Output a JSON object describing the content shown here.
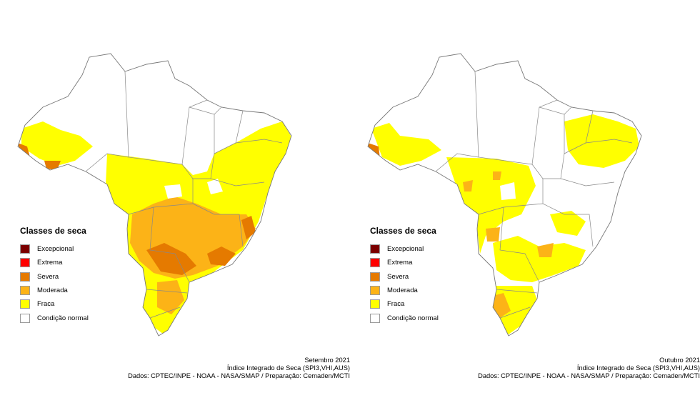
{
  "legend": {
    "title": "Classes de seca",
    "items": [
      {
        "label": "Excepcional",
        "color": "#7b0000"
      },
      {
        "label": "Extrema",
        "color": "#ff0000"
      },
      {
        "label": "Severa",
        "color": "#e57a00"
      },
      {
        "label": "Moderada",
        "color": "#fcb317"
      },
      {
        "label": "Fraca",
        "color": "#ffff00"
      },
      {
        "label": "Condição normal",
        "color": "#ffffff"
      }
    ]
  },
  "maps": [
    {
      "month": "Setembro 2021",
      "index": "Índice Integrado de Seca (SPI3,VHI,AUS)",
      "source": "Dados: CPTEC/INPE - NOAA - NASA/SMAP / Preparação: Cemaden/MCTI"
    },
    {
      "month": "Outubro 2021",
      "index": "Índice Integrado de Seca (SPI3,VHI,AUS)",
      "source": "Dados: CPTEC/INPE - NOAA - NASA/SMAP / Preparação: Cemaden/MCTI"
    }
  ]
}
